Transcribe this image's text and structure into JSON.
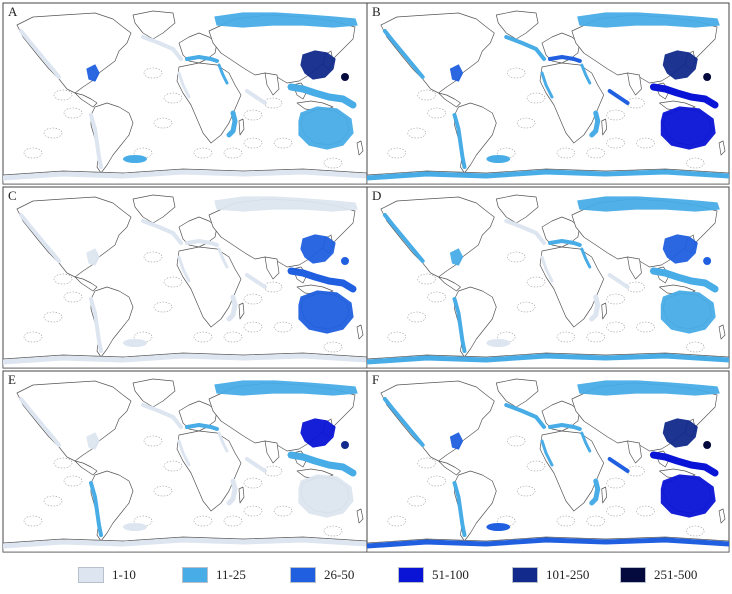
{
  "colors": {
    "land_fill": "#ffffff",
    "land_stroke": "#555555",
    "grid_stroke": "#9a9a9a",
    "panel_border": "#444444",
    "bins": [
      "#dde5f0",
      "#48ace6",
      "#1f5fe0",
      "#0a14d6",
      "#112a8c",
      "#050a3e"
    ]
  },
  "panels": [
    {
      "label": "A",
      "levels": {
        "antarctic": 0,
        "arctic": 1,
        "north_atlantic": 0,
        "pacific_na": 0,
        "south_america": 0,
        "caribbean": 2,
        "mediterranean": 1,
        "east_africa": 1,
        "red_sea": 1,
        "west_africa": 0,
        "indian_ocean": 0,
        "japan": 4,
        "se_asia": 1,
        "australia": 1,
        "polynesia": 5,
        "falklands": 1
      }
    },
    {
      "label": "B",
      "levels": {
        "antarctic": 1,
        "arctic": 1,
        "north_atlantic": 1,
        "pacific_na": 1,
        "south_america": 1,
        "caribbean": 2,
        "mediterranean": 2,
        "east_africa": 1,
        "red_sea": 1,
        "west_africa": 1,
        "indian_ocean": 2,
        "japan": 4,
        "se_asia": 3,
        "australia": 3,
        "polynesia": 5,
        "falklands": 1
      }
    },
    {
      "label": "C",
      "levels": {
        "antarctic": 0,
        "arctic": 0,
        "north_atlantic": 0,
        "pacific_na": 0,
        "south_america": 0,
        "caribbean": 0,
        "mediterranean": 0,
        "east_africa": 0,
        "red_sea": 0,
        "west_africa": 0,
        "indian_ocean": 0,
        "japan": 2,
        "se_asia": 2,
        "australia": 2,
        "polynesia": 2,
        "falklands": 0
      }
    },
    {
      "label": "D",
      "levels": {
        "antarctic": 1,
        "arctic": 1,
        "north_atlantic": 0,
        "pacific_na": 1,
        "south_america": 1,
        "caribbean": 1,
        "mediterranean": 1,
        "east_africa": 0,
        "red_sea": 1,
        "west_africa": 0,
        "indian_ocean": 0,
        "japan": 2,
        "se_asia": 1,
        "australia": 1,
        "polynesia": 2,
        "falklands": 0
      }
    },
    {
      "label": "E",
      "levels": {
        "antarctic": 0,
        "arctic": 1,
        "north_atlantic": 0,
        "pacific_na": 0,
        "south_america": 1,
        "caribbean": 0,
        "mediterranean": 1,
        "east_africa": 0,
        "red_sea": 0,
        "west_africa": 0,
        "indian_ocean": 0,
        "japan": 3,
        "se_asia": 1,
        "australia": 0,
        "polynesia": 4,
        "falklands": 0
      }
    },
    {
      "label": "F",
      "levels": {
        "antarctic": 2,
        "arctic": 1,
        "north_atlantic": 1,
        "pacific_na": 1,
        "south_america": 1,
        "caribbean": 2,
        "mediterranean": 1,
        "east_africa": 1,
        "red_sea": 1,
        "west_africa": 1,
        "indian_ocean": 2,
        "japan": 4,
        "se_asia": 3,
        "australia": 3,
        "polynesia": 5,
        "falklands": 2
      }
    }
  ],
  "legend": [
    {
      "label": "1-10"
    },
    {
      "label": "11-25"
    },
    {
      "label": "26-50"
    },
    {
      "label": "51-100"
    },
    {
      "label": "101-250"
    },
    {
      "label": "251-500"
    }
  ]
}
